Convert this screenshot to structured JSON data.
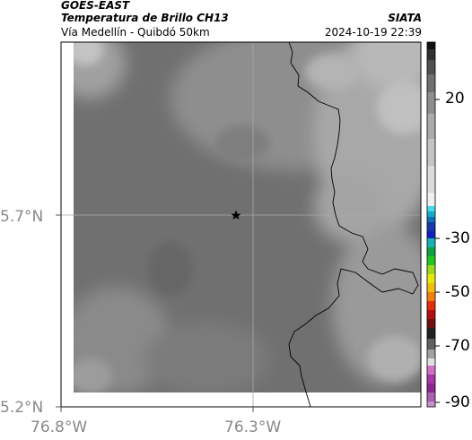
{
  "header": {
    "satellite": "GOES-EAST",
    "product": "Temperatura de Brillo CH13",
    "location": "Vía Medellín - Quibdó 50km",
    "agency": "SIATA",
    "datetime": "2024-10-19 22:39"
  },
  "axes": {
    "lat_labels": [
      "5.7°N",
      "5.2°N"
    ],
    "lon_labels": [
      "76.8°W",
      "76.3°W"
    ]
  },
  "colorbar": {
    "tick_labels": [
      "20",
      "-30",
      "-50",
      "-70",
      "-90"
    ]
  },
  "map": {
    "marker": "star-icon",
    "colors": {
      "background_gray": "#6e6e6e",
      "light_gray": "#bdbdbd",
      "frame": "#000000"
    }
  }
}
